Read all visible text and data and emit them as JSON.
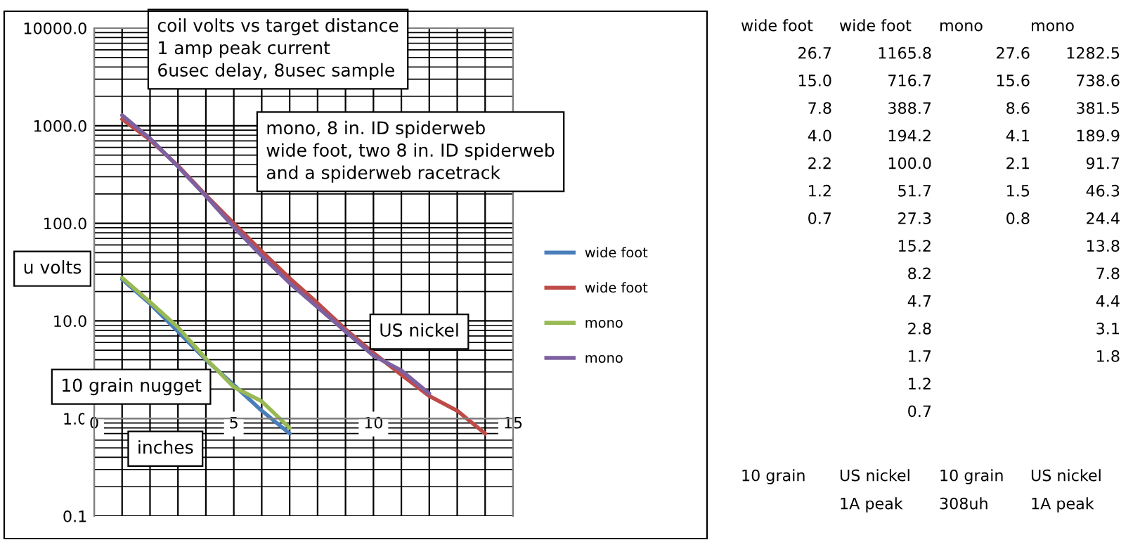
{
  "chart_data": [
    {
      "type": "line",
      "title": "coil volts vs target distance\n1 amp peak current\n6usec delay, 8usec sample",
      "xlabel": "inches",
      "ylabel": "u volts",
      "annotations": [
        "mono, 8 in. ID spiderweb\nwide foot, two 8 in. ID spiderweb\nand a spiderweb racetrack",
        "US nickel",
        "10 grain nugget"
      ],
      "series": [
        {
          "name": "wide foot",
          "color": "#4a7ebb",
          "x": [
            1,
            2,
            3,
            4,
            5,
            6,
            7
          ],
          "values": [
            26.7,
            15.0,
            7.8,
            4.0,
            2.2,
            1.2,
            0.7
          ]
        },
        {
          "name": "wide foot",
          "color": "#be4b48",
          "x": [
            1,
            2,
            3,
            4,
            5,
            6,
            7,
            8,
            9,
            10,
            11,
            12,
            13,
            14
          ],
          "values": [
            1165.8,
            716.7,
            388.7,
            194.2,
            100.0,
            51.7,
            27.3,
            15.2,
            8.2,
            4.7,
            2.8,
            1.7,
            1.2,
            0.7
          ]
        },
        {
          "name": "mono",
          "color": "#98b954",
          "x": [
            1,
            2,
            3,
            4,
            5,
            6,
            7
          ],
          "values": [
            27.6,
            15.6,
            8.6,
            4.1,
            2.1,
            1.5,
            0.8
          ]
        },
        {
          "name": "mono",
          "color": "#7d60a0",
          "x": [
            1,
            2,
            3,
            4,
            5,
            6,
            7,
            8,
            9,
            10,
            11,
            12
          ],
          "values": [
            1282.5,
            738.6,
            381.5,
            189.9,
            91.7,
            46.3,
            24.4,
            13.8,
            7.8,
            4.4,
            3.1,
            1.8
          ]
        }
      ],
      "log": "y",
      "xlim": [
        0,
        15
      ],
      "xticks": [
        0,
        {
          "value": 1,
          "label": null
        },
        {
          "value": 2,
          "label": null
        },
        {
          "value": 3,
          "label": null
        },
        {
          "value": 4,
          "label": null
        },
        5,
        {
          "value": 6,
          "label": null
        },
        {
          "value": 7,
          "label": null
        },
        {
          "value": 8,
          "label": null
        },
        {
          "value": 9,
          "label": null
        },
        10,
        {
          "value": 11,
          "label": null
        },
        {
          "value": 12,
          "label": null
        },
        {
          "value": 13,
          "label": null
        },
        {
          "value": 14,
          "label": null
        },
        15
      ],
      "ylim": [
        0.1,
        10000
      ],
      "yticks": [
        {
          "value": 0.1,
          "label": "0.1"
        },
        {
          "value": 1,
          "label": "1.0"
        },
        {
          "value": 10,
          "label": "10.0"
        },
        {
          "value": 100,
          "label": "100.0"
        },
        {
          "value": 1000,
          "label": "1000.0"
        },
        {
          "value": 10000,
          "label": "10000.0"
        }
      ],
      "grid": true,
      "legend": "right",
      "marker": "none",
      "line_style": "solid"
    },
    {
      "type": "other",
      "annotations": [
        "wide foot",
        "26.7",
        "15.0",
        "7.8",
        "4.0",
        "2.2",
        "1.2",
        "0.7",
        "wide foot",
        "1165.8",
        "716.7",
        "388.7",
        "194.2",
        "100.0",
        "51.7",
        "27.3",
        "15.2",
        "8.2",
        "4.7",
        "2.8",
        "1.7",
        "1.2",
        "0.7",
        "mono",
        "27.6",
        "15.6",
        "8.6",
        "4.1",
        "2.1",
        "1.5",
        "0.8",
        "mono",
        "1282.5",
        "738.6",
        "381.5",
        "189.9",
        "91.7",
        "46.3",
        "24.4",
        "13.8",
        "7.8",
        "4.4",
        "3.1",
        "1.8",
        "10 grain",
        "US nickel",
        "10 grain",
        "US nickel",
        "1A peak",
        "308uh",
        "1A peak"
      ]
    }
  ]
}
